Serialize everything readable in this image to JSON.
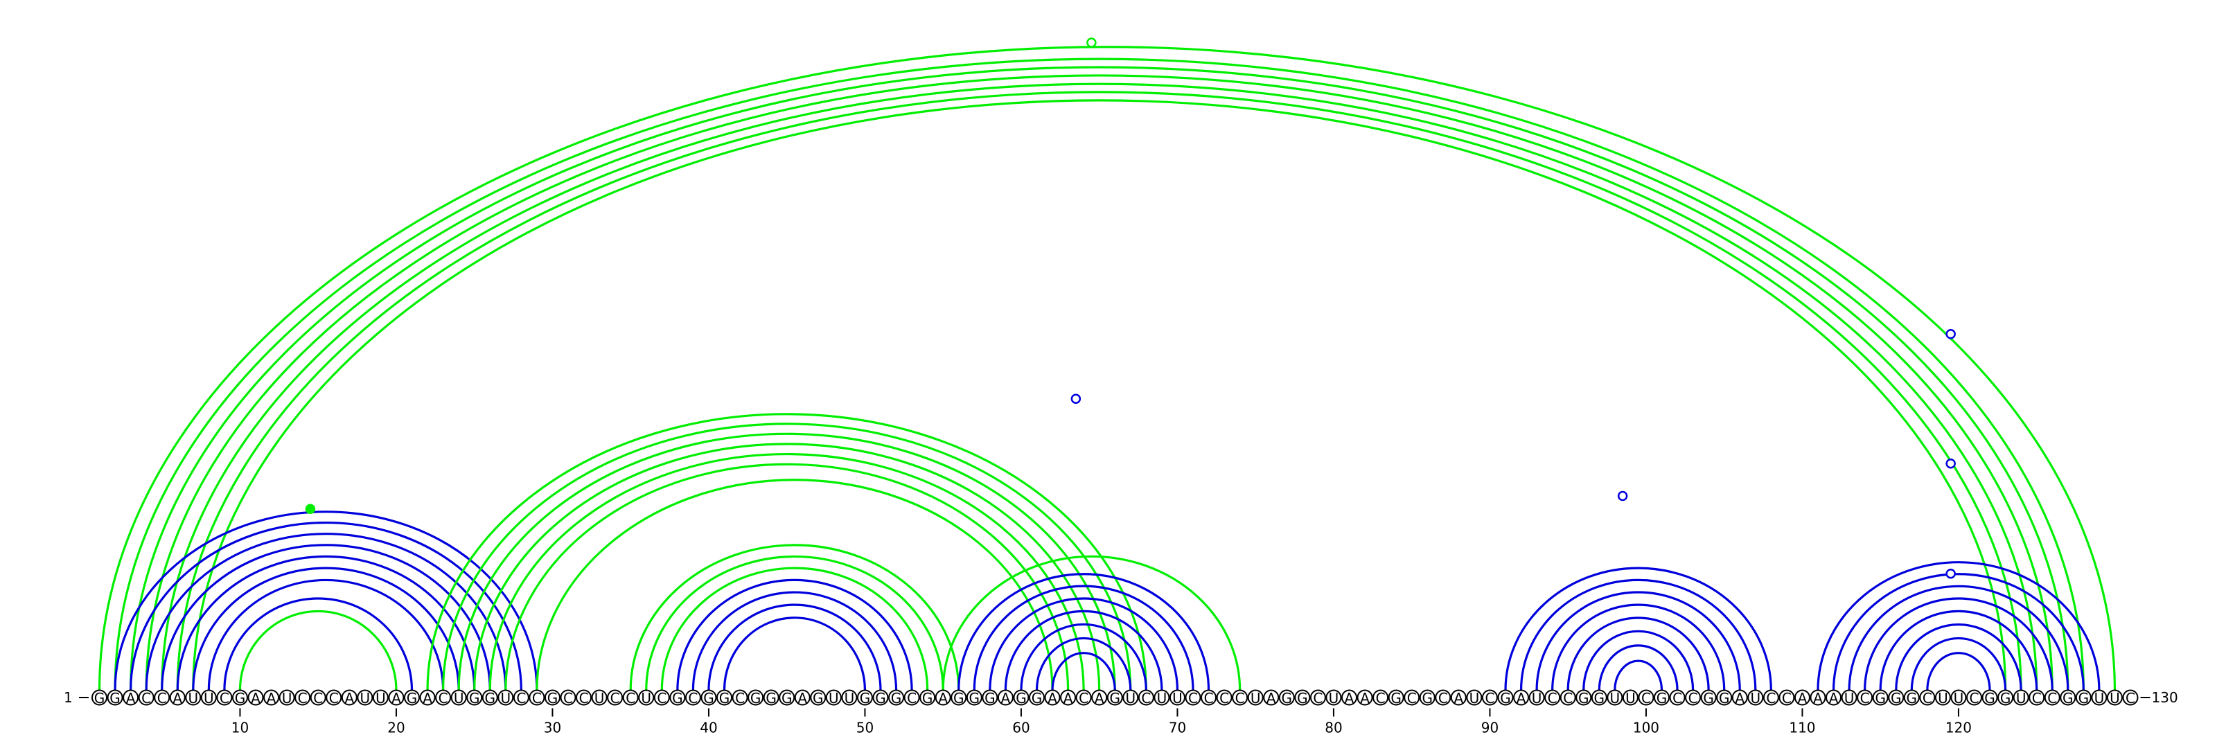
{
  "sequence": "GGACCAUUCGAAUCCCAUUAGACUGGUCCGCCUCCUCGCGGCGGGAGUUGGGCGAGGGAGGAACAGUCUUCCCCUAGGCUAACGCGCAUCGAUCCGGUUCGCCGGAUCCAAAUCGGGCUUCGGUCCGGUUC",
  "start_label": "1",
  "end_label": "130",
  "ticks": [
    10,
    20,
    30,
    40,
    50,
    60,
    70,
    80,
    90,
    100,
    110,
    120
  ],
  "colors": {
    "blue": "#0000dd",
    "green": "#00ee00"
  },
  "arcs": [
    {
      "i": 1,
      "j": 130,
      "color": "green"
    },
    {
      "i": 2,
      "j": 128,
      "color": "green"
    },
    {
      "i": 3,
      "j": 127,
      "color": "green"
    },
    {
      "i": 4,
      "j": 126,
      "color": "green"
    },
    {
      "i": 5,
      "j": 125,
      "color": "green"
    },
    {
      "i": 6,
      "j": 124,
      "color": "green"
    },
    {
      "i": 7,
      "j": 123,
      "color": "green"
    },
    {
      "i": 2,
      "j": 29,
      "color": "blue"
    },
    {
      "i": 3,
      "j": 28,
      "color": "blue"
    },
    {
      "i": 4,
      "j": 27,
      "color": "blue"
    },
    {
      "i": 5,
      "j": 26,
      "color": "blue"
    },
    {
      "i": 6,
      "j": 25,
      "color": "blue"
    },
    {
      "i": 7,
      "j": 24,
      "color": "blue"
    },
    {
      "i": 8,
      "j": 23,
      "color": "blue"
    },
    {
      "i": 9,
      "j": 21,
      "color": "blue"
    },
    {
      "i": 10,
      "j": 20,
      "color": "green"
    },
    {
      "i": 22,
      "j": 68,
      "color": "green"
    },
    {
      "i": 23,
      "j": 67,
      "color": "green"
    },
    {
      "i": 24,
      "j": 66,
      "color": "green"
    },
    {
      "i": 25,
      "j": 65,
      "color": "green"
    },
    {
      "i": 26,
      "j": 64,
      "color": "green"
    },
    {
      "i": 27,
      "j": 63,
      "color": "green"
    },
    {
      "i": 29,
      "j": 62,
      "color": "green"
    },
    {
      "i": 35,
      "j": 56,
      "color": "green"
    },
    {
      "i": 36,
      "j": 55,
      "color": "green"
    },
    {
      "i": 37,
      "j": 54,
      "color": "green"
    },
    {
      "i": 38,
      "j": 53,
      "color": "blue"
    },
    {
      "i": 39,
      "j": 52,
      "color": "blue"
    },
    {
      "i": 40,
      "j": 51,
      "color": "blue"
    },
    {
      "i": 41,
      "j": 50,
      "color": "blue"
    },
    {
      "i": 55,
      "j": 74,
      "color": "green"
    },
    {
      "i": 56,
      "j": 72,
      "color": "blue"
    },
    {
      "i": 57,
      "j": 71,
      "color": "blue"
    },
    {
      "i": 58,
      "j": 70,
      "color": "blue"
    },
    {
      "i": 59,
      "j": 69,
      "color": "blue"
    },
    {
      "i": 60,
      "j": 68,
      "color": "blue"
    },
    {
      "i": 61,
      "j": 67,
      "color": "blue"
    },
    {
      "i": 62,
      "j": 66,
      "color": "blue"
    },
    {
      "i": 91,
      "j": 108,
      "color": "blue"
    },
    {
      "i": 92,
      "j": 107,
      "color": "blue"
    },
    {
      "i": 93,
      "j": 106,
      "color": "blue"
    },
    {
      "i": 94,
      "j": 105,
      "color": "blue"
    },
    {
      "i": 95,
      "j": 104,
      "color": "blue"
    },
    {
      "i": 96,
      "j": 103,
      "color": "blue"
    },
    {
      "i": 97,
      "j": 102,
      "color": "blue"
    },
    {
      "i": 98,
      "j": 101,
      "color": "blue"
    },
    {
      "i": 111,
      "j": 129,
      "color": "blue"
    },
    {
      "i": 112,
      "j": 128,
      "color": "blue"
    },
    {
      "i": 113,
      "j": 127,
      "color": "blue"
    },
    {
      "i": 114,
      "j": 126,
      "color": "blue"
    },
    {
      "i": 115,
      "j": 125,
      "color": "blue"
    },
    {
      "i": 116,
      "j": 124,
      "color": "blue"
    },
    {
      "i": 117,
      "j": 123,
      "color": "blue"
    },
    {
      "i": 118,
      "j": 122,
      "color": "blue"
    }
  ],
  "markers": [
    {
      "pos": 64.5,
      "color": "green",
      "fill": "open",
      "height": 1.0
    },
    {
      "pos": 14.5,
      "color": "green",
      "fill": "filled",
      "height": 0.28
    },
    {
      "pos": 63.5,
      "color": "blue",
      "fill": "open",
      "height": 0.45
    },
    {
      "pos": 98.5,
      "color": "blue",
      "fill": "open",
      "height": 0.3
    },
    {
      "pos": 119.5,
      "color": "blue",
      "fill": "open",
      "height": 0.55
    },
    {
      "pos": 119.5,
      "color": "blue",
      "fill": "open",
      "height": 0.35
    },
    {
      "pos": 119.5,
      "color": "blue",
      "fill": "open",
      "height": 0.18
    }
  ]
}
